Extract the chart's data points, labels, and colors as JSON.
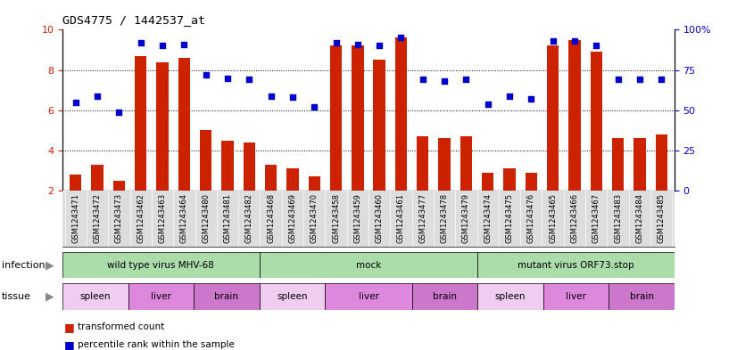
{
  "title": "GDS4775 / 1442537_at",
  "samples": [
    "GSM1243471",
    "GSM1243472",
    "GSM1243473",
    "GSM1243462",
    "GSM1243463",
    "GSM1243464",
    "GSM1243480",
    "GSM1243481",
    "GSM1243482",
    "GSM1243468",
    "GSM1243469",
    "GSM1243470",
    "GSM1243458",
    "GSM1243459",
    "GSM1243460",
    "GSM1243461",
    "GSM1243477",
    "GSM1243478",
    "GSM1243479",
    "GSM1243474",
    "GSM1243475",
    "GSM1243476",
    "GSM1243465",
    "GSM1243466",
    "GSM1243467",
    "GSM1243483",
    "GSM1243484",
    "GSM1243485"
  ],
  "red_values": [
    2.8,
    3.3,
    2.5,
    8.7,
    8.4,
    8.6,
    5.0,
    4.5,
    4.4,
    3.3,
    3.1,
    2.7,
    9.2,
    9.2,
    8.5,
    9.6,
    4.7,
    4.6,
    4.7,
    2.9,
    3.1,
    2.9,
    9.2,
    9.5,
    8.9,
    4.6,
    4.6,
    4.8
  ],
  "blue_values": [
    55,
    59,
    49,
    92,
    90,
    91,
    72,
    70,
    69,
    59,
    58,
    52,
    92,
    91,
    90,
    95,
    69,
    68,
    69,
    54,
    59,
    57,
    93,
    93,
    90,
    69,
    69,
    69
  ],
  "ylim_left": [
    2,
    10
  ],
  "ylim_right": [
    0,
    100
  ],
  "yticks_left": [
    2,
    4,
    6,
    8,
    10
  ],
  "yticks_right": [
    0,
    25,
    50,
    75,
    100
  ],
  "bar_color": "#cc2200",
  "dot_color": "#0000cc",
  "infection_spans": [
    {
      "label": "wild type virus MHV-68",
      "start": 0,
      "end": 9,
      "color": "#aaeebb"
    },
    {
      "label": "mock",
      "start": 9,
      "end": 19,
      "color": "#aaeebb"
    },
    {
      "label": "mutant virus ORF73.stop",
      "start": 19,
      "end": 28,
      "color": "#55cc66"
    }
  ],
  "tissue_spans": [
    {
      "label": "spleen",
      "start": 0,
      "end": 3,
      "color": "#eeccee"
    },
    {
      "label": "liver",
      "start": 3,
      "end": 6,
      "color": "#dd88dd"
    },
    {
      "label": "brain",
      "start": 6,
      "end": 9,
      "color": "#dd88dd"
    },
    {
      "label": "spleen",
      "start": 9,
      "end": 12,
      "color": "#eeccee"
    },
    {
      "label": "liver",
      "start": 12,
      "end": 16,
      "color": "#dd88dd"
    },
    {
      "label": "brain",
      "start": 16,
      "end": 19,
      "color": "#dd88dd"
    },
    {
      "label": "spleen",
      "start": 19,
      "end": 22,
      "color": "#eeccee"
    },
    {
      "label": "liver",
      "start": 22,
      "end": 25,
      "color": "#dd88dd"
    },
    {
      "label": "brain",
      "start": 25,
      "end": 28,
      "color": "#dd88dd"
    }
  ],
  "infection_label": "infection",
  "tissue_label": "tissue",
  "legend_red": "transformed count",
  "legend_blue": "percentile rank within the sample",
  "xticklabel_bg": "#dddddd",
  "plot_bg": "#ffffff"
}
